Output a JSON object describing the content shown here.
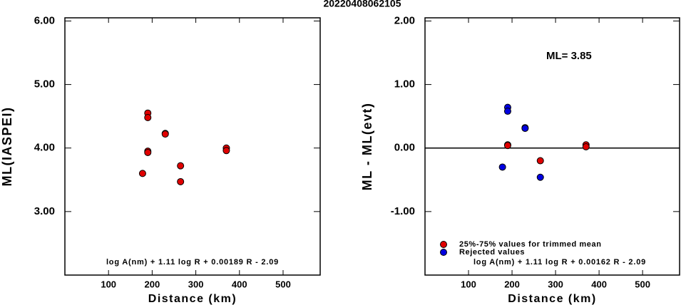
{
  "title": "20220408062105",
  "chart_data": [
    {
      "type": "scatter",
      "xlabel": "Distance (km)",
      "ylabel": "ML(IASPEI)",
      "xlim": [
        0,
        585
      ],
      "ylim": [
        2,
        6.05
      ],
      "xticks": [
        100,
        200,
        300,
        400,
        500
      ],
      "yticks": [
        {
          "value": 3,
          "label": "3.00"
        },
        {
          "value": 4,
          "label": "4.00"
        },
        {
          "value": 5,
          "label": "5.00"
        },
        {
          "value": 6,
          "label": "6.00"
        }
      ],
      "annotation": "log A(nm) + 1.11 log R + 0.00189 R - 2.09",
      "series": [
        {
          "color": "#e00000",
          "x": [
            178,
            190,
            190,
            190,
            190,
            230,
            230,
            265,
            265,
            370,
            370
          ],
          "values": [
            3.6,
            4.55,
            4.48,
            3.95,
            3.93,
            4.23,
            4.22,
            3.72,
            3.47,
            4.0,
            3.96
          ]
        }
      ]
    },
    {
      "type": "scatter",
      "xlabel": "Distance (km)",
      "ylabel": "ML - ML(evt)",
      "xlim": [
        0,
        585
      ],
      "ylim": [
        -2,
        2.05
      ],
      "xticks": [
        100,
        200,
        300,
        400,
        500
      ],
      "yticks": [
        {
          "value": -1,
          "label": "-1.00"
        },
        {
          "value": 0,
          "label": "0.00"
        },
        {
          "value": 1,
          "label": "1.00"
        },
        {
          "value": 2,
          "label": "2.00"
        }
      ],
      "reference_line": 0,
      "note": "ML= 3.85",
      "annotation": "log A(nm) + 1.11 log R + 0.00162 R - 2.09",
      "series": [
        {
          "name": "25%-75% values for trimmed mean",
          "color": "#e00000",
          "x": [
            190,
            190,
            265,
            370,
            370
          ],
          "values": [
            0.05,
            0.04,
            -0.2,
            0.05,
            0.02
          ]
        },
        {
          "name": "Rejected values",
          "color": "#0000e0",
          "x": [
            178,
            190,
            190,
            230,
            230,
            265
          ],
          "values": [
            -0.3,
            0.64,
            0.58,
            0.32,
            0.31,
            -0.46
          ]
        }
      ]
    }
  ]
}
